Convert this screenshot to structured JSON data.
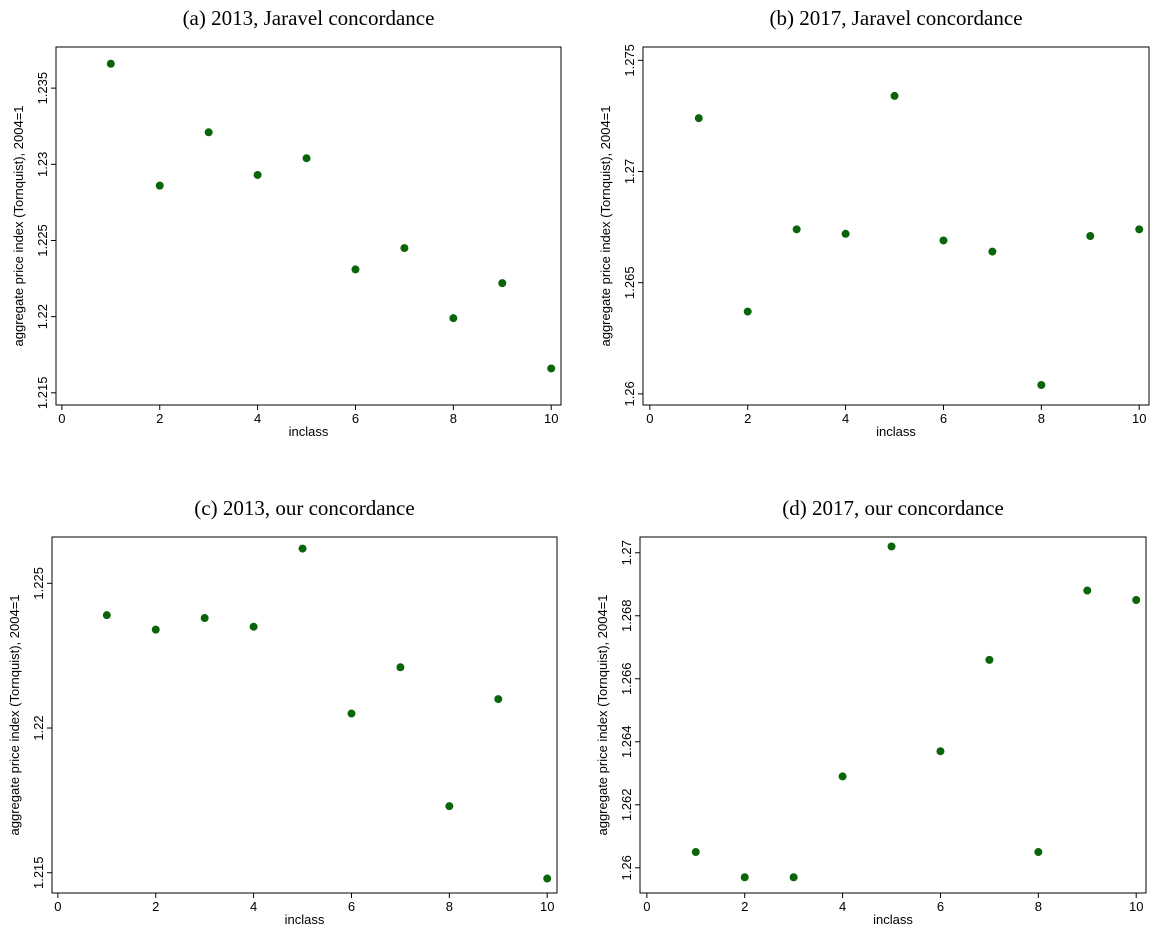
{
  "chart_data": [
    {
      "type": "scatter",
      "title": "(a) 2013, Jaravel concordance",
      "x_label": "inclass",
      "y_label": "aggregate price index (Tornquist), 2004=1",
      "x": [
        1,
        2,
        3,
        4,
        5,
        6,
        7,
        8,
        9,
        10
      ],
      "values": [
        1.2366,
        1.2286,
        1.2321,
        1.2293,
        1.2304,
        1.2231,
        1.2245,
        1.2199,
        1.2222,
        1.2166
      ],
      "color": "#0a650a",
      "xlim": [
        -0.12,
        10.2
      ],
      "xticks": [
        0,
        2,
        4,
        6,
        8,
        10
      ],
      "ylim": [
        1.2142,
        1.2377
      ],
      "yticks": [
        1.215,
        1.22,
        1.225,
        1.23,
        1.235
      ]
    },
    {
      "type": "scatter",
      "title": "(b) 2017, Jaravel concordance",
      "x_label": "inclass",
      "y_label": "aggregate price index (Tornquist), 2004=1",
      "x": [
        1,
        2,
        3,
        4,
        5,
        6,
        7,
        8,
        9,
        10
      ],
      "values": [
        1.2724,
        1.2637,
        1.2674,
        1.2672,
        1.2734,
        1.2669,
        1.2664,
        1.2604,
        1.2671,
        1.2674
      ],
      "color": "#0a650a",
      "xlim": [
        -0.14,
        10.2
      ],
      "xticks": [
        0,
        2,
        4,
        6,
        8,
        10
      ],
      "ylim": [
        1.2595,
        1.2756
      ],
      "yticks": [
        1.26,
        1.265,
        1.27,
        1.275
      ]
    },
    {
      "type": "scatter",
      "title": "(c) 2013, our concordance",
      "x_label": "inclass",
      "y_label": "aggregate price index (Tornquist), 2004=1",
      "x": [
        1,
        2,
        3,
        4,
        5,
        6,
        7,
        8,
        9,
        10
      ],
      "values": [
        1.2239,
        1.2234,
        1.2238,
        1.2235,
        1.2262,
        1.2205,
        1.2221,
        1.2173,
        1.221,
        1.2148
      ],
      "color": "#0a650a",
      "xlim": [
        -0.12,
        10.2
      ],
      "xticks": [
        0,
        2,
        4,
        6,
        8,
        10
      ],
      "ylim": [
        1.2143,
        1.2266
      ],
      "yticks": [
        1.215,
        1.22,
        1.225
      ]
    },
    {
      "type": "scatter",
      "title": "(d) 2017, our concordance",
      "x_label": "inclass",
      "y_label": "aggregate price index (Tornquist), 2004=1",
      "x": [
        1,
        2,
        3,
        4,
        5,
        6,
        7,
        8,
        9,
        10
      ],
      "values": [
        1.2605,
        1.2597,
        1.2597,
        1.2629,
        1.2702,
        1.2637,
        1.2666,
        1.2605,
        1.2688,
        1.2685
      ],
      "color": "#0a650a",
      "xlim": [
        -0.14,
        10.2
      ],
      "xticks": [
        0,
        2,
        4,
        6,
        8,
        10
      ],
      "ylim": [
        1.2592,
        1.2705
      ],
      "yticks": [
        1.26,
        1.262,
        1.264,
        1.266,
        1.268,
        1.27
      ]
    }
  ]
}
